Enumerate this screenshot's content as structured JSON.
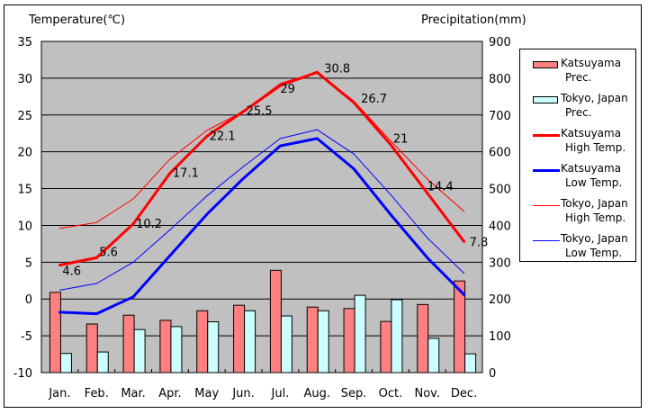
{
  "chart_data": {
    "type": "bar+line",
    "left_axis_title": "Temperature(℃)",
    "right_axis_title": "Precipitation(mm)",
    "categories": [
      "Jan.",
      "Feb.",
      "Mar.",
      "Apr.",
      "May",
      "Jun.",
      "Jul.",
      "Aug.",
      "Sep.",
      "Oct.",
      "Nov.",
      "Dec."
    ],
    "left_axis": {
      "range": [
        -10,
        35
      ],
      "ticks": [
        "35",
        "30",
        "25",
        "20",
        "15",
        "10",
        "5",
        "0",
        "-5",
        "-10"
      ],
      "tick_values": [
        35,
        30,
        25,
        20,
        15,
        10,
        5,
        0,
        -5,
        -10
      ]
    },
    "right_axis": {
      "range": [
        0,
        900
      ],
      "ticks": [
        "900",
        "800",
        "700",
        "600",
        "500",
        "400",
        "300",
        "200",
        "100",
        "0"
      ],
      "tick_values": [
        900,
        800,
        700,
        600,
        500,
        400,
        300,
        200,
        100,
        0
      ]
    },
    "grid": true,
    "legend_position": "right",
    "bar_series": [
      {
        "name": "Katsuyama Prec.",
        "label_line1": "Katsuyama",
        "label_line2": "Prec.",
        "color": "#ff8080",
        "values": [
          218,
          132,
          156,
          142,
          168,
          183,
          278,
          178,
          174,
          139,
          185,
          249
        ]
      },
      {
        "name": "Tokyo, Japan Prec.",
        "label_line1": "Tokyo, Japan",
        "label_line2": "Prec.",
        "color": "#ccffff",
        "values": [
          52,
          56,
          117,
          125,
          138,
          168,
          154,
          168,
          210,
          198,
          93,
          51
        ]
      }
    ],
    "line_series": [
      {
        "name": "Katsuyama High Temp.",
        "label_line1": "Katsuyama",
        "label_line2": "High Temp.",
        "color": "#ff0000",
        "weight": "thick",
        "values": [
          4.6,
          5.6,
          10.2,
          17.1,
          22.1,
          25.5,
          29,
          30.8,
          26.7,
          21,
          14.4,
          7.8
        ],
        "data_labels": [
          "4.6",
          "5.6",
          "10.2",
          "17.1",
          "22.1",
          "25.5",
          "29",
          "30.8",
          "26.7",
          "21",
          "14.4",
          "7.8"
        ]
      },
      {
        "name": "Katsuyama Low Temp.",
        "label_line1": "Katsuyama",
        "label_line2": "Low Temp.",
        "color": "#0000ff",
        "weight": "thick",
        "values": [
          -1.8,
          -2.0,
          0.3,
          5.9,
          11.5,
          16.4,
          20.8,
          21.8,
          17.7,
          11.5,
          5.6,
          0.6
        ]
      },
      {
        "name": "Tokyo, Japan High Temp.",
        "label_line1": "Tokyo, Japan",
        "label_line2": "High Temp.",
        "color": "#ff0000",
        "weight": "thin",
        "values": [
          9.6,
          10.4,
          13.6,
          19.0,
          22.9,
          25.5,
          29.3,
          30.8,
          26.9,
          21.5,
          16.3,
          11.9
        ]
      },
      {
        "name": "Tokyo, Japan Low Temp.",
        "label_line1": "Tokyo, Japan",
        "label_line2": "Low Temp.",
        "color": "#0000ff",
        "weight": "thin",
        "values": [
          1.2,
          2.1,
          5.0,
          9.4,
          14.0,
          18.0,
          21.8,
          23.0,
          19.7,
          14.2,
          8.3,
          3.5
        ]
      }
    ],
    "plot_background": "#c0c0c0"
  }
}
